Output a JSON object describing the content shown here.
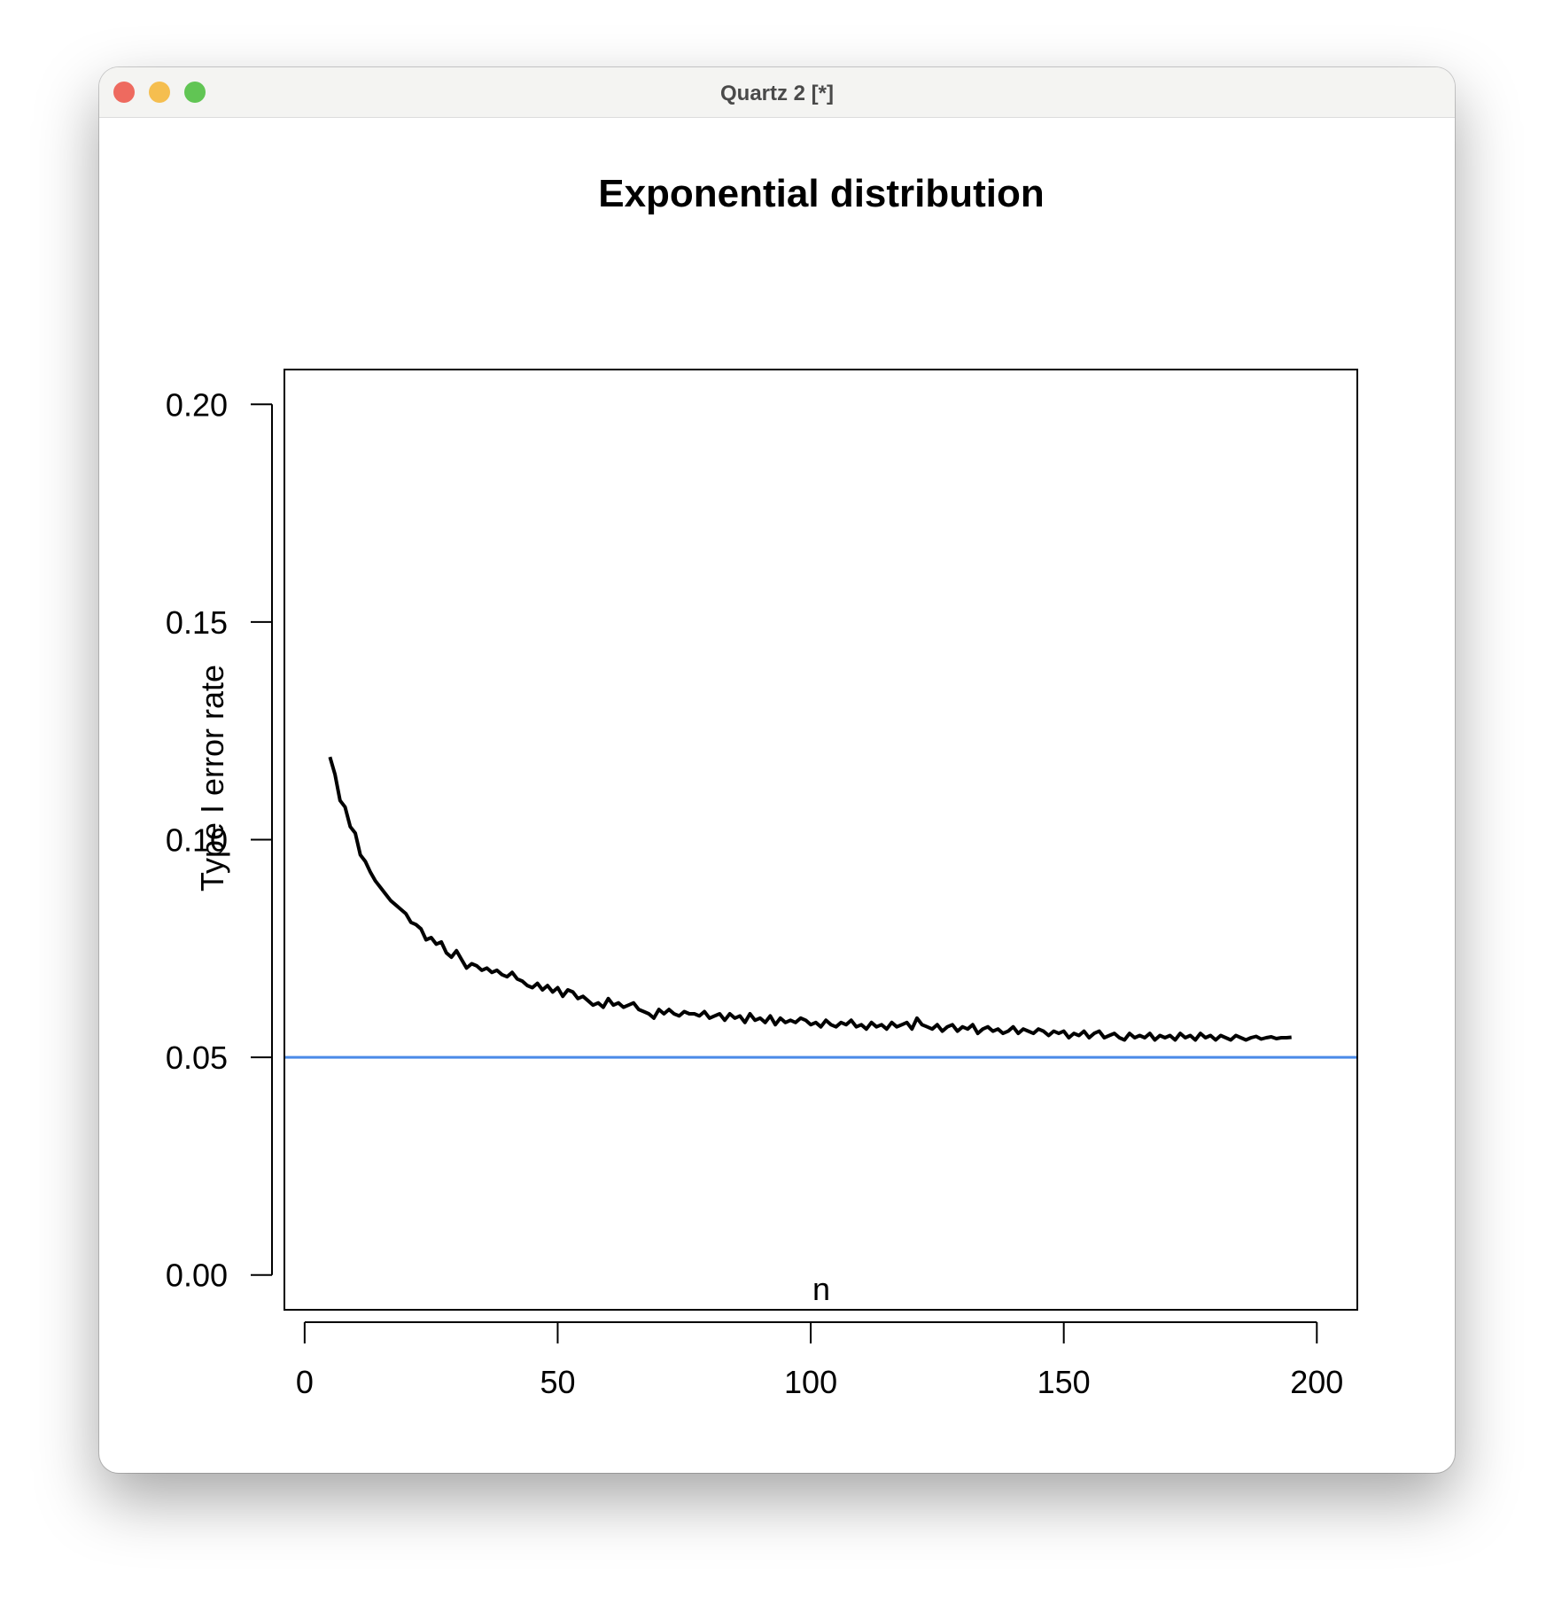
{
  "window": {
    "title": "Quartz 2 [*]",
    "traffic_lights": {
      "close": "#ee6a5f",
      "minimize": "#f5be4f",
      "zoom": "#61c554"
    }
  },
  "chart_data": {
    "type": "line",
    "title": "Exponential distribution",
    "xlabel": "n",
    "ylabel": "Type I error rate",
    "xlim": [
      -4,
      208
    ],
    "ylim": [
      -0.008,
      0.208
    ],
    "xticks": [
      0,
      50,
      100,
      150,
      200
    ],
    "xtick_labels": [
      "0",
      "50",
      "100",
      "150",
      "200"
    ],
    "yticks": [
      0.0,
      0.05,
      0.1,
      0.15,
      0.2
    ],
    "ytick_labels": [
      "0.00",
      "0.05",
      "0.10",
      "0.15",
      "0.20"
    ],
    "series": [
      {
        "name": "Type I error rate",
        "color": "#000000",
        "x_start": 5,
        "x_step": 1,
        "values": [
          0.119,
          0.115,
          0.109,
          0.1075,
          0.103,
          0.1015,
          0.0965,
          0.095,
          0.0925,
          0.0905,
          0.089,
          0.0875,
          0.086,
          0.085,
          0.084,
          0.083,
          0.081,
          0.0805,
          0.0795,
          0.077,
          0.0775,
          0.076,
          0.0765,
          0.074,
          0.073,
          0.0745,
          0.0725,
          0.0705,
          0.0715,
          0.071,
          0.07,
          0.0705,
          0.0695,
          0.07,
          0.069,
          0.0685,
          0.0695,
          0.068,
          0.0675,
          0.0665,
          0.066,
          0.067,
          0.0655,
          0.0665,
          0.065,
          0.066,
          0.064,
          0.0655,
          0.065,
          0.0635,
          0.064,
          0.063,
          0.062,
          0.0625,
          0.0615,
          0.0635,
          0.062,
          0.0625,
          0.0615,
          0.062,
          0.0625,
          0.061,
          0.0605,
          0.06,
          0.059,
          0.061,
          0.06,
          0.061,
          0.06,
          0.0595,
          0.0605,
          0.06,
          0.06,
          0.0595,
          0.0605,
          0.059,
          0.0595,
          0.06,
          0.0585,
          0.06,
          0.059,
          0.0595,
          0.058,
          0.06,
          0.0585,
          0.059,
          0.058,
          0.0595,
          0.0575,
          0.059,
          0.058,
          0.0585,
          0.058,
          0.059,
          0.0585,
          0.0575,
          0.058,
          0.057,
          0.0585,
          0.0575,
          0.057,
          0.058,
          0.0575,
          0.0585,
          0.057,
          0.0575,
          0.0565,
          0.058,
          0.057,
          0.0575,
          0.0565,
          0.058,
          0.057,
          0.0575,
          0.058,
          0.0565,
          0.059,
          0.0575,
          0.057,
          0.0565,
          0.0575,
          0.056,
          0.057,
          0.0575,
          0.056,
          0.057,
          0.0565,
          0.0575,
          0.0555,
          0.0565,
          0.057,
          0.056,
          0.0565,
          0.0555,
          0.056,
          0.057,
          0.0555,
          0.0565,
          0.056,
          0.0555,
          0.0565,
          0.056,
          0.055,
          0.056,
          0.0555,
          0.056,
          0.0545,
          0.0555,
          0.055,
          0.056,
          0.0545,
          0.0555,
          0.056,
          0.0545,
          0.055,
          0.0555,
          0.0545,
          0.054,
          0.0555,
          0.0545,
          0.055,
          0.0545,
          0.0555,
          0.054,
          0.055,
          0.0545,
          0.055,
          0.054,
          0.0555,
          0.0545,
          0.055,
          0.054,
          0.0555,
          0.0545,
          0.055,
          0.054,
          0.055,
          0.0545,
          0.054,
          0.055,
          0.0545,
          0.054,
          0.0545,
          0.0548,
          0.0542,
          0.0545,
          0.0547,
          0.0543,
          0.0545,
          0.0545,
          0.0546
        ]
      }
    ],
    "reference_line": {
      "y": 0.05,
      "color": "#4a8ae8"
    }
  }
}
